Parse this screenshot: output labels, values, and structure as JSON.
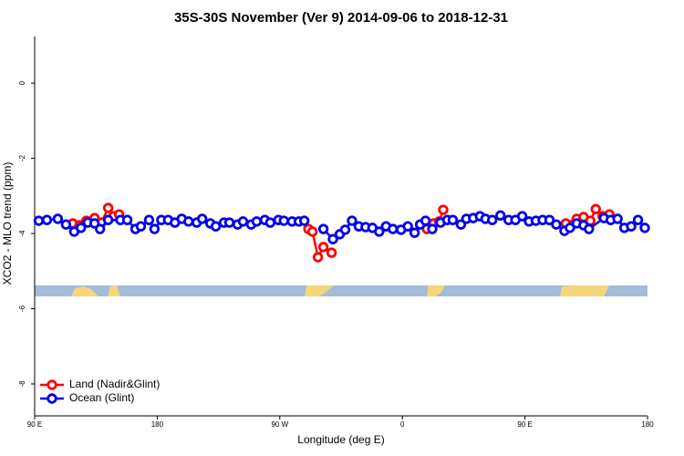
{
  "chart_data": {
    "type": "line",
    "title": "35S-30S November (Ver 9)   2014-09-06 to 2018-12-31",
    "x_label": "Longitude (deg E)",
    "y_label": "XCO2 - MLO trend (ppm)",
    "xlim": [
      90,
      540
    ],
    "xticks": [
      {
        "value": 90,
        "label": "90 E"
      },
      180,
      {
        "value": 270,
        "label": "90 W"
      },
      {
        "value": 360,
        "label": "0"
      },
      {
        "value": 450,
        "label": "90 E"
      },
      {
        "value": 540,
        "label": "180"
      }
    ],
    "ylim": [
      -8.85,
      1.24
    ],
    "yticks": [
      0,
      -2,
      -4,
      -6,
      -8
    ],
    "legend": "bottom-left",
    "series": [
      {
        "name": "Land (Nadir&Glint)",
        "color": "#ff0000",
        "x": [
          118,
          123,
          128,
          134,
          139,
          144,
          148,
          152,
          null,
          291,
          294,
          298,
          302,
          308,
          null,
          378,
          383,
          387,
          390,
          null,
          480,
          488,
          493,
          498,
          502,
          507,
          512
        ],
        "values": [
          -3.73,
          -3.78,
          -3.66,
          -3.59,
          -3.71,
          -3.32,
          -3.54,
          -3.49,
          null,
          -3.88,
          -3.95,
          -4.63,
          -4.36,
          -4.51,
          null,
          -3.88,
          -3.73,
          -3.68,
          -3.37,
          null,
          -3.73,
          -3.61,
          -3.56,
          -3.66,
          -3.35,
          -3.54,
          -3.49
        ]
      },
      {
        "name": "Ocean (Glint)",
        "color": "#0000ee",
        "x": [
          93,
          99,
          107,
          113,
          119,
          124,
          129,
          134,
          138,
          144,
          153,
          158,
          164,
          168,
          174,
          178,
          183,
          188,
          193,
          198,
          203,
          209,
          213,
          219,
          223,
          229,
          233,
          239,
          243,
          249,
          253,
          259,
          263,
          269,
          273,
          279,
          284,
          288,
          null,
          302,
          309,
          314,
          318,
          323,
          328,
          333,
          338,
          343,
          348,
          353,
          359,
          364,
          369,
          373,
          377,
          382,
          388,
          393,
          397,
          403,
          407,
          412,
          417,
          421,
          426,
          432,
          438,
          443,
          448,
          453,
          458,
          463,
          468,
          473,
          479,
          483,
          488,
          493,
          497,
          508,
          513,
          518,
          523,
          528,
          533,
          538
        ],
        "values": [
          -3.66,
          -3.64,
          -3.61,
          -3.76,
          -3.95,
          -3.85,
          -3.71,
          -3.73,
          -3.88,
          -3.64,
          -3.64,
          -3.64,
          -3.88,
          -3.81,
          -3.64,
          -3.88,
          -3.64,
          -3.64,
          -3.71,
          -3.61,
          -3.68,
          -3.71,
          -3.61,
          -3.73,
          -3.81,
          -3.71,
          -3.71,
          -3.76,
          -3.68,
          -3.76,
          -3.68,
          -3.64,
          -3.71,
          -3.64,
          -3.66,
          -3.68,
          -3.68,
          -3.66,
          null,
          -3.88,
          -4.15,
          -4.02,
          -3.9,
          -3.66,
          -3.81,
          -3.83,
          -3.85,
          -3.95,
          -3.81,
          -3.88,
          -3.9,
          -3.81,
          -3.98,
          -3.76,
          -3.66,
          -3.88,
          -3.71,
          -3.64,
          -3.64,
          -3.76,
          -3.61,
          -3.59,
          -3.54,
          -3.61,
          -3.64,
          -3.52,
          -3.64,
          -3.64,
          -3.54,
          -3.68,
          -3.66,
          -3.64,
          -3.64,
          -3.76,
          -3.93,
          -3.85,
          -3.73,
          -3.78,
          -3.88,
          -3.59,
          -3.64,
          -3.61,
          -3.85,
          -3.81,
          -3.64,
          -3.85
        ]
      }
    ]
  }
}
